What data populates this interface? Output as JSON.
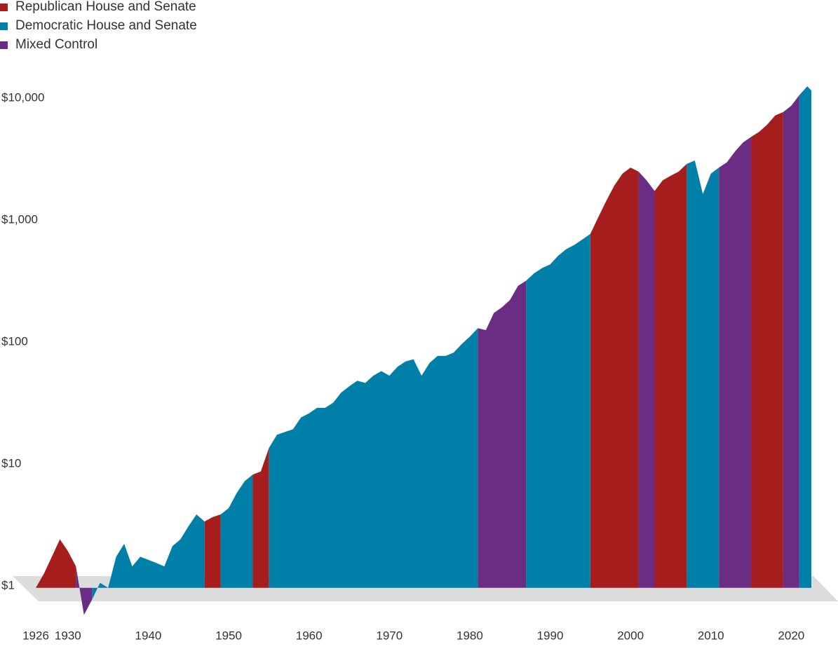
{
  "chart_data": {
    "type": "area",
    "log_scale": true,
    "grid": false,
    "legend_position": "top-left",
    "x": [
      1926,
      1927,
      1928,
      1929,
      1930,
      1931,
      1932,
      1933,
      1934,
      1935,
      1936,
      1937,
      1938,
      1939,
      1940,
      1941,
      1942,
      1943,
      1944,
      1945,
      1946,
      1947,
      1948,
      1949,
      1950,
      1951,
      1952,
      1953,
      1954,
      1955,
      1956,
      1957,
      1958,
      1959,
      1960,
      1961,
      1962,
      1963,
      1964,
      1965,
      1966,
      1967,
      1968,
      1969,
      1970,
      1971,
      1972,
      1973,
      1974,
      1975,
      1976,
      1977,
      1978,
      1979,
      1980,
      1981,
      1982,
      1983,
      1984,
      1985,
      1986,
      1987,
      1988,
      1989,
      1990,
      1991,
      1992,
      1993,
      1994,
      1995,
      1996,
      1997,
      1998,
      1999,
      2000,
      2001,
      2002,
      2003,
      2004,
      2005,
      2006,
      2007,
      2008,
      2009,
      2010,
      2011,
      2012,
      2013,
      2014,
      2015,
      2016,
      2017,
      2018,
      2019,
      2020,
      2021,
      2022,
      2022.5
    ],
    "xlim": [
      1926,
      2022.5
    ],
    "xticks": [
      1926,
      1930,
      1940,
      1950,
      1960,
      1970,
      1980,
      1990,
      2000,
      2010,
      2020
    ],
    "ylim": [
      0.4,
      20000
    ],
    "yticks": [
      {
        "value": 1,
        "label": "$1"
      },
      {
        "value": 10,
        "label": "$10"
      },
      {
        "value": 100,
        "label": "$100"
      },
      {
        "value": 1000,
        "label": "$1,000"
      },
      {
        "value": 10000,
        "label": "$10,000"
      }
    ],
    "series": [
      {
        "name": "Republican House and Senate",
        "color": "#a51d1d",
        "values": [
          1,
          1.3,
          1.8,
          2.5,
          2,
          1.5,
          null,
          null,
          null,
          null,
          null,
          null,
          null,
          null,
          null,
          null,
          null,
          null,
          null,
          null,
          null,
          3.5,
          3.8,
          4,
          null,
          null,
          null,
          8.5,
          9,
          14,
          null,
          null,
          null,
          null,
          null,
          null,
          null,
          null,
          null,
          null,
          null,
          null,
          null,
          null,
          null,
          null,
          null,
          null,
          null,
          null,
          null,
          null,
          null,
          null,
          null,
          null,
          null,
          null,
          null,
          null,
          null,
          null,
          null,
          null,
          null,
          null,
          null,
          null,
          null,
          800,
          1100,
          1500,
          2000,
          2500,
          2800,
          2600,
          null,
          1800,
          2200,
          2400,
          2600,
          3000,
          null,
          null,
          null,
          null,
          null,
          null,
          null,
          5000,
          5500,
          6300,
          7500,
          8000,
          null,
          null,
          null,
          null
        ]
      },
      {
        "name": "Democratic House and Senate",
        "color": "#0080a9",
        "values": [
          null,
          null,
          null,
          null,
          null,
          null,
          null,
          0.8,
          1.1,
          1,
          1.8,
          2.3,
          1.5,
          1.8,
          1.7,
          1.6,
          1.5,
          2.2,
          2.5,
          3.2,
          4,
          3.5,
          null,
          4,
          4.5,
          6,
          7.5,
          8.5,
          null,
          14,
          18,
          19,
          20,
          25,
          27,
          30,
          30,
          33,
          40,
          45,
          50,
          48,
          55,
          60,
          55,
          65,
          72,
          75,
          55,
          70,
          80,
          80,
          85,
          100,
          115,
          135,
          null,
          null,
          null,
          null,
          null,
          330,
          380,
          420,
          450,
          530,
          600,
          650,
          720,
          800,
          null,
          null,
          null,
          null,
          null,
          null,
          null,
          null,
          null,
          null,
          null,
          3000,
          3200,
          1700,
          2500,
          2800,
          null,
          null,
          null,
          null,
          null,
          null,
          null,
          null,
          null,
          11000,
          13000,
          12000
        ]
      },
      {
        "name": "Mixed Control",
        "color": "#6b2d83",
        "values": [
          null,
          null,
          null,
          null,
          null,
          1.5,
          0.6,
          0.8,
          null,
          null,
          null,
          null,
          null,
          null,
          null,
          null,
          null,
          null,
          null,
          null,
          null,
          null,
          null,
          null,
          null,
          null,
          null,
          null,
          null,
          null,
          null,
          null,
          null,
          null,
          null,
          null,
          null,
          null,
          null,
          null,
          null,
          null,
          null,
          null,
          null,
          null,
          null,
          null,
          null,
          null,
          null,
          null,
          null,
          null,
          null,
          135,
          130,
          180,
          200,
          230,
          300,
          330,
          null,
          null,
          null,
          null,
          null,
          null,
          null,
          null,
          null,
          null,
          null,
          null,
          null,
          2600,
          2200,
          1800,
          null,
          null,
          null,
          null,
          null,
          null,
          null,
          2800,
          3100,
          3800,
          4500,
          5000,
          null,
          null,
          null,
          8000,
          9000,
          11000,
          null,
          null
        ]
      }
    ]
  }
}
